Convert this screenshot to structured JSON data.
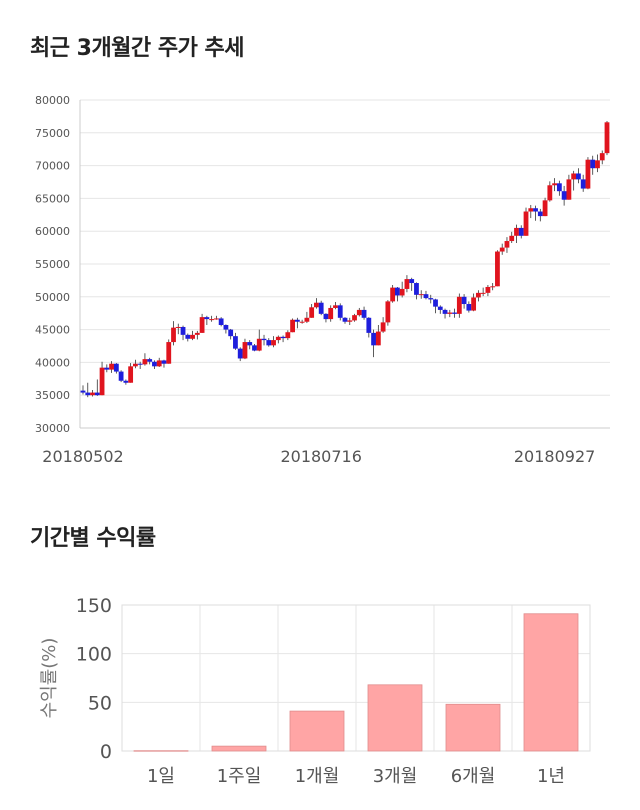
{
  "page": {
    "title_price": "최근 3개월간 주가 추세",
    "title_returns": "기간별 수익률"
  },
  "colors": {
    "up": "#e0141e",
    "down": "#1e1edc",
    "bar": "#ffa5a5",
    "bar_border": "#e08c8c",
    "grid": "#e6e6e6"
  },
  "chart_data": [
    {
      "type": "candlestick",
      "ylim": [
        30000,
        80000
      ],
      "y_ticks": [
        "30000",
        "35000",
        "40000",
        "45000",
        "50000",
        "55000",
        "60000",
        "65000",
        "70000",
        "75000",
        "80000"
      ],
      "x_tick_labels": [
        {
          "index": 0,
          "label": "20180502"
        },
        {
          "index": 50,
          "label": "20180716"
        },
        {
          "index": 99,
          "label": "20180927"
        }
      ],
      "grid": true,
      "candles": [
        [
          35700,
          35400,
          36500,
          35100
        ],
        [
          35400,
          35000,
          36900,
          34700
        ],
        [
          35000,
          35400,
          35800,
          34800
        ],
        [
          35400,
          35000,
          37400,
          34900
        ],
        [
          35000,
          39200,
          40100,
          35000
        ],
        [
          39200,
          38900,
          39700,
          38500
        ],
        [
          38900,
          39800,
          40200,
          38400
        ],
        [
          39800,
          38600,
          39900,
          38300
        ],
        [
          38600,
          37200,
          38800,
          37000
        ],
        [
          37200,
          36900,
          37400,
          36600
        ],
        [
          36900,
          39400,
          39900,
          36900
        ],
        [
          39400,
          39800,
          40400,
          39100
        ],
        [
          39800,
          39700,
          40100,
          39000
        ],
        [
          39700,
          40500,
          41400,
          39500
        ],
        [
          40500,
          40100,
          40700,
          39700
        ],
        [
          40100,
          39400,
          40300,
          39000
        ],
        [
          39400,
          40300,
          40700,
          39300
        ],
        [
          40300,
          39800,
          40400,
          39200
        ],
        [
          39800,
          43100,
          43500,
          39800
        ],
        [
          43100,
          45300,
          46300,
          42600
        ],
        [
          45300,
          45400,
          45900,
          44300
        ],
        [
          45400,
          44200,
          45600,
          43400
        ],
        [
          44200,
          43600,
          44400,
          43200
        ],
        [
          43600,
          44200,
          44800,
          43400
        ],
        [
          44200,
          44500,
          44800,
          43500
        ],
        [
          44500,
          46900,
          47400,
          44500
        ],
        [
          46900,
          46600,
          47100,
          45700
        ],
        [
          46600,
          46600,
          47100,
          46200
        ],
        [
          46600,
          46700,
          47100,
          46500
        ],
        [
          46700,
          45700,
          46900,
          45500
        ],
        [
          45700,
          45000,
          45800,
          44400
        ],
        [
          45000,
          44000,
          45100,
          43500
        ],
        [
          44000,
          42100,
          44500,
          41900
        ],
        [
          42100,
          40600,
          42300,
          40200
        ],
        [
          40600,
          43100,
          43600,
          40500
        ],
        [
          43100,
          42600,
          43400,
          42000
        ],
        [
          42600,
          41800,
          42800,
          41700
        ],
        [
          41800,
          43600,
          45000,
          41700
        ],
        [
          43600,
          43400,
          44200,
          42600
        ],
        [
          43400,
          42600,
          43700,
          42400
        ],
        [
          42600,
          43400,
          44000,
          42300
        ],
        [
          43400,
          43900,
          44100,
          42900
        ],
        [
          43900,
          43700,
          44100,
          43100
        ],
        [
          43700,
          44600,
          44900,
          43400
        ],
        [
          44600,
          46500,
          46700,
          44600
        ],
        [
          46500,
          46200,
          46800,
          45200
        ],
        [
          46200,
          46200,
          46500,
          45900
        ],
        [
          46200,
          46800,
          47700,
          46000
        ],
        [
          46800,
          48400,
          48900,
          46800
        ],
        [
          48400,
          49100,
          49800,
          48200
        ],
        [
          49100,
          47400,
          49400,
          47200
        ],
        [
          47400,
          46600,
          47500,
          46100
        ],
        [
          46600,
          48300,
          48700,
          46200
        ],
        [
          48300,
          48700,
          49200,
          48100
        ],
        [
          48700,
          46800,
          49000,
          46400
        ],
        [
          46800,
          46200,
          46900,
          45900
        ],
        [
          46200,
          46400,
          46800,
          45700
        ],
        [
          46400,
          47200,
          47400,
          46200
        ],
        [
          47200,
          48000,
          48300,
          47000
        ],
        [
          48000,
          46800,
          48500,
          46500
        ],
        [
          46800,
          44500,
          46900,
          43800
        ],
        [
          44500,
          42600,
          45000,
          40800
        ],
        [
          42600,
          44700,
          45700,
          42600
        ],
        [
          44700,
          46100,
          46900,
          44500
        ],
        [
          46100,
          49300,
          49500,
          45600
        ],
        [
          49300,
          51400,
          51800,
          49100
        ],
        [
          51400,
          50200,
          51500,
          49300
        ],
        [
          50200,
          51200,
          52300,
          49900
        ],
        [
          51200,
          52700,
          53300,
          50700
        ],
        [
          52700,
          52100,
          52900,
          50900
        ],
        [
          52100,
          50300,
          52200,
          49600
        ],
        [
          50300,
          50400,
          51000,
          49700
        ],
        [
          50400,
          49800,
          50900,
          49600
        ],
        [
          49800,
          49600,
          50300,
          49000
        ],
        [
          49600,
          48500,
          49700,
          47500
        ],
        [
          48500,
          48000,
          48700,
          47400
        ],
        [
          48000,
          47400,
          48200,
          46700
        ],
        [
          47400,
          47600,
          48000,
          46900
        ],
        [
          47600,
          47400,
          48200,
          46800
        ],
        [
          47400,
          50000,
          50500,
          46800
        ],
        [
          50000,
          48900,
          50400,
          48200
        ],
        [
          48900,
          47900,
          49300,
          47600
        ],
        [
          47900,
          49900,
          50500,
          47800
        ],
        [
          49900,
          50600,
          51000,
          49300
        ],
        [
          50600,
          50600,
          51400,
          50100
        ],
        [
          50600,
          51500,
          51800,
          50100
        ],
        [
          51500,
          51600,
          52100,
          51000
        ],
        [
          51600,
          56900,
          57100,
          51600
        ],
        [
          56900,
          57500,
          58100,
          56400
        ],
        [
          57500,
          58500,
          59100,
          56700
        ],
        [
          58500,
          59300,
          59900,
          58200
        ],
        [
          59300,
          60500,
          61000,
          58200
        ],
        [
          60500,
          59300,
          60900,
          58900
        ],
        [
          59300,
          63000,
          63600,
          59300
        ],
        [
          63000,
          63500,
          64000,
          62000
        ],
        [
          63500,
          63000,
          63900,
          61600
        ],
        [
          63000,
          62300,
          63400,
          61500
        ],
        [
          62300,
          64700,
          65100,
          62300
        ],
        [
          64700,
          67000,
          67600,
          64500
        ],
        [
          67000,
          67300,
          68100,
          66100
        ],
        [
          67300,
          66100,
          67700,
          65400
        ],
        [
          66100,
          64800,
          66900,
          63900
        ],
        [
          64800,
          67900,
          68600,
          64800
        ],
        [
          67900,
          68800,
          69200,
          66200
        ],
        [
          68800,
          67900,
          69600,
          67300
        ],
        [
          67900,
          66500,
          68600,
          66000
        ],
        [
          66500,
          70900,
          71300,
          66400
        ],
        [
          70900,
          69600,
          71500,
          68600
        ],
        [
          69600,
          70800,
          71700,
          69000
        ],
        [
          70800,
          71900,
          72300,
          70200
        ],
        [
          71900,
          76600,
          76800,
          71600
        ]
      ]
    },
    {
      "type": "bar",
      "categories": [
        "1일",
        "1주일",
        "1개월",
        "3개월",
        "6개월",
        "1년"
      ],
      "values": [
        0.3,
        5,
        41,
        68,
        48,
        141
      ],
      "ylabel": "수익률(%)",
      "ylim": [
        0,
        150
      ],
      "y_ticks": [
        "0",
        "50",
        "100",
        "150"
      ],
      "grid": true
    }
  ]
}
